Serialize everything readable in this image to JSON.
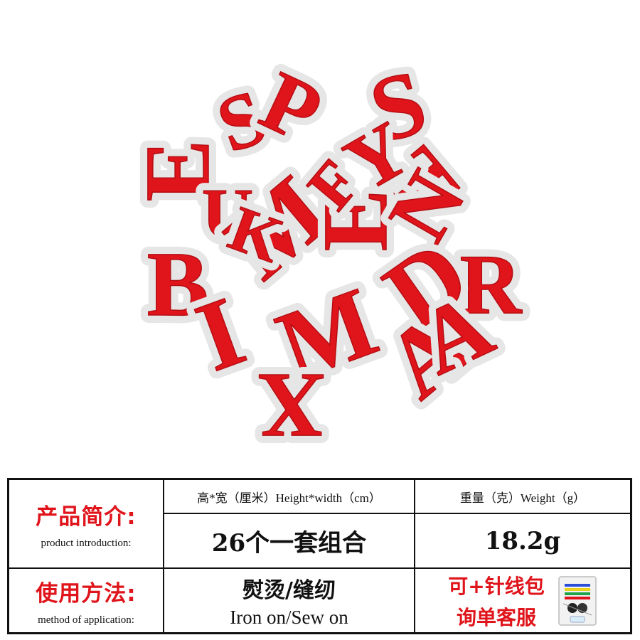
{
  "product_photo": {
    "letters": [
      "E",
      "S",
      "P",
      "S",
      "U",
      "T",
      "B",
      "M",
      "E",
      "F",
      "N",
      "R",
      "I",
      "D",
      "K",
      "M",
      "X",
      "A",
      "Y",
      "A"
    ]
  },
  "table": {
    "row1": {
      "label_cn": "产品简介:",
      "label_en": "product introduction:",
      "col1_header": "高*宽（厘米）Height*width（cm）",
      "col1_value": "26个一套组合",
      "col2_header": "重量（克）Weight（g）",
      "col2_value": "18.2g"
    },
    "row2": {
      "label_cn": "使用方法:",
      "label_en": "method of application:",
      "method_cn": "熨烫/缝纫",
      "method_en": "Iron on/Sew on",
      "extra_line1": "可+针线包",
      "extra_line2": "询单客服"
    }
  },
  "colors": {
    "accent": "#e0141b",
    "border": "#111111"
  }
}
